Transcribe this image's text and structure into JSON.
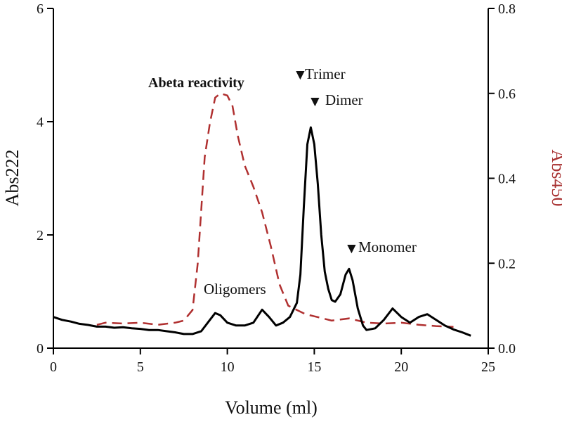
{
  "chart_data": {
    "type": "line",
    "xlabel": "Volume (ml)",
    "ylabel": "Abs222",
    "y2label": "Abs450",
    "xlim": [
      0,
      25
    ],
    "ylim": [
      0,
      6
    ],
    "y2lim": [
      0,
      0.8
    ],
    "x_ticks": [
      "0",
      "5",
      "10",
      "15",
      "20",
      "25"
    ],
    "y_ticks": [
      "0",
      "2",
      "4",
      "6"
    ],
    "y2_ticks": [
      "0.0",
      "0.2",
      "0.4",
      "0.6",
      "0.8"
    ],
    "grid": false,
    "series": [
      {
        "axis": "left",
        "color": "#000000",
        "style": "solid",
        "x": [
          0,
          0.5,
          1,
          1.5,
          2,
          2.5,
          3,
          3.5,
          4,
          4.5,
          5,
          5.5,
          6,
          6.5,
          7,
          7.5,
          8,
          8.5,
          9,
          9.3,
          9.6,
          10,
          10.5,
          11,
          11.5,
          12,
          12.4,
          12.8,
          13.2,
          13.6,
          14,
          14.2,
          14.4,
          14.6,
          14.8,
          15,
          15.2,
          15.4,
          15.6,
          15.8,
          16,
          16.2,
          16.5,
          16.8,
          17,
          17.2,
          17.5,
          17.8,
          18,
          18.5,
          19,
          19.5,
          20,
          20.5,
          21,
          21.5,
          22,
          22.5,
          23,
          23.5,
          24
        ],
        "y": [
          0.55,
          0.5,
          0.47,
          0.43,
          0.41,
          0.38,
          0.38,
          0.36,
          0.37,
          0.35,
          0.34,
          0.32,
          0.32,
          0.3,
          0.28,
          0.25,
          0.25,
          0.3,
          0.5,
          0.62,
          0.58,
          0.45,
          0.4,
          0.4,
          0.45,
          0.68,
          0.55,
          0.4,
          0.45,
          0.55,
          0.8,
          1.3,
          2.5,
          3.6,
          3.9,
          3.6,
          2.9,
          2.0,
          1.35,
          1.05,
          0.85,
          0.82,
          0.95,
          1.3,
          1.4,
          1.2,
          0.7,
          0.4,
          0.32,
          0.35,
          0.5,
          0.7,
          0.55,
          0.45,
          0.55,
          0.6,
          0.5,
          0.4,
          0.33,
          0.28,
          0.22
        ]
      },
      {
        "axis": "right",
        "color": "#b03030",
        "style": "dashed",
        "x": [
          2.5,
          3,
          4,
          5,
          6,
          7,
          7.5,
          8,
          8.3,
          8.7,
          9,
          9.3,
          9.6,
          10,
          10.3,
          10.6,
          11,
          11.5,
          12,
          12.5,
          13,
          13.5,
          14,
          14.5,
          15,
          15.5,
          16,
          17,
          18,
          19,
          20,
          21,
          22,
          23
        ],
        "y": [
          0.055,
          0.06,
          0.058,
          0.06,
          0.055,
          0.06,
          0.065,
          0.09,
          0.2,
          0.45,
          0.53,
          0.59,
          0.6,
          0.595,
          0.57,
          0.5,
          0.43,
          0.38,
          0.32,
          0.24,
          0.15,
          0.1,
          0.09,
          0.08,
          0.075,
          0.07,
          0.065,
          0.07,
          0.06,
          0.058,
          0.06,
          0.055,
          0.052,
          0.05
        ]
      }
    ],
    "annotations": {
      "abeta": "Abeta reactivity",
      "trimer": "Trimer",
      "dimer": "Dimer",
      "monomer": "Monomer",
      "oligomers": "Oligomers",
      "marker": "▼"
    }
  }
}
